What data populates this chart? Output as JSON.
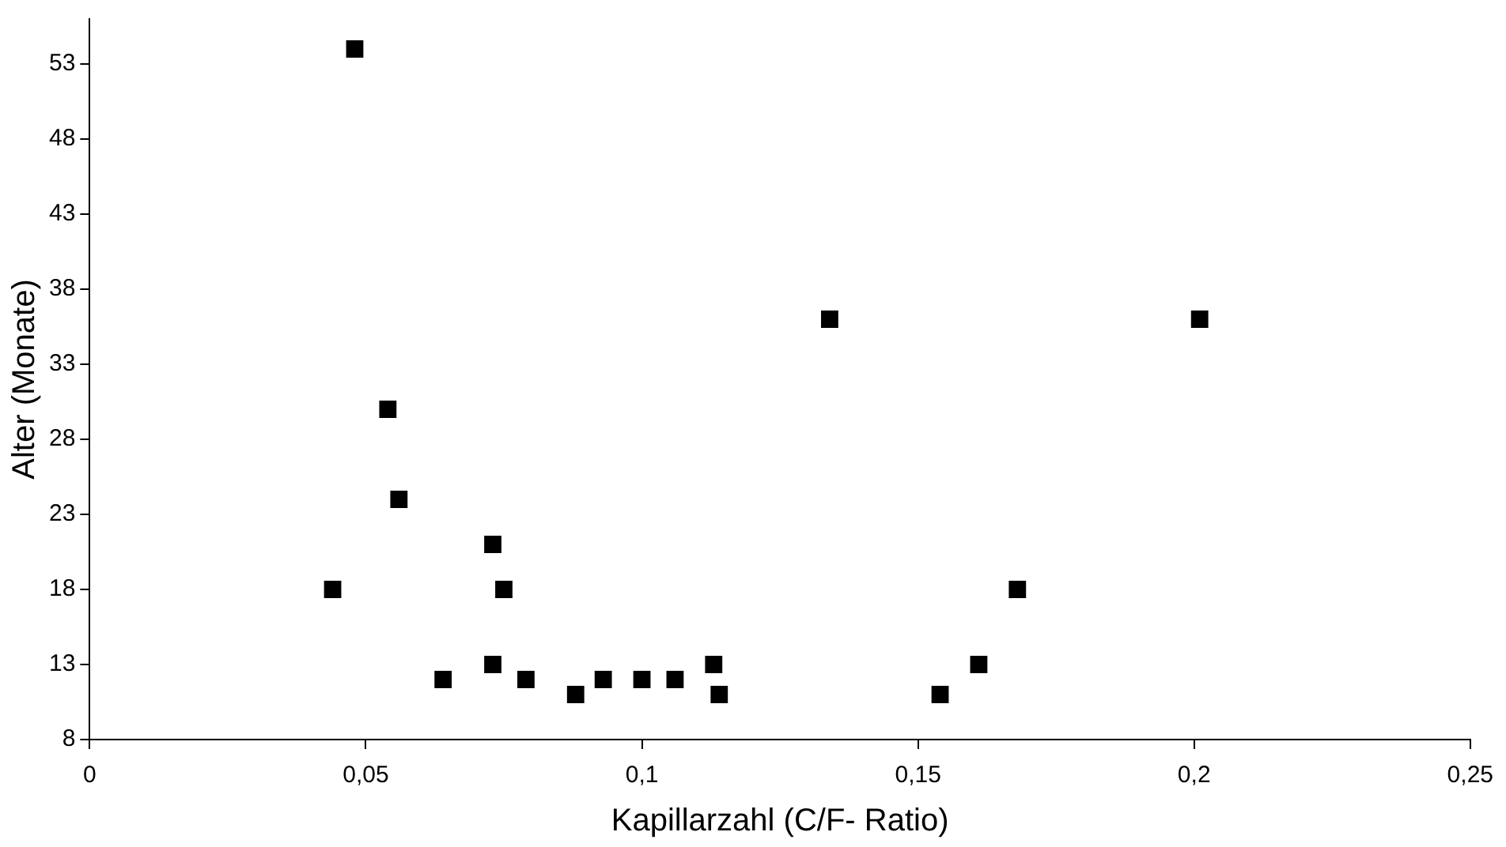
{
  "chart_data": {
    "type": "scatter",
    "xlabel": "Kapillarzahl (C/F- Ratio)",
    "ylabel": "Alter (Monate)",
    "series": [
      {
        "color": "#000000",
        "x": [
          0.048,
          0.054,
          0.056,
          0.044,
          0.073,
          0.075,
          0.064,
          0.073,
          0.079,
          0.088,
          0.093,
          0.1,
          0.106,
          0.113,
          0.114,
          0.134,
          0.201,
          0.154,
          0.161,
          0.168
        ],
        "values": [
          54,
          30,
          24,
          18,
          21,
          18,
          12,
          13,
          12,
          11,
          12,
          12,
          12,
          13,
          11,
          36,
          36,
          11,
          13,
          18
        ]
      }
    ],
    "xlim": [
      0,
      0.25
    ],
    "xticks": [
      0,
      {
        "value": 0.05,
        "label": "0,05"
      },
      {
        "value": 0.1,
        "label": "0,1"
      },
      {
        "value": 0.15,
        "label": "0,15"
      },
      {
        "value": 0.2,
        "label": "0,2"
      },
      {
        "value": 0.25,
        "label": "0,25"
      }
    ],
    "ylim": [
      8,
      56
    ],
    "yticks": [
      8,
      13,
      18,
      23,
      28,
      33,
      38,
      43,
      48,
      53
    ],
    "grid": false,
    "legend": false,
    "marker": "square"
  }
}
